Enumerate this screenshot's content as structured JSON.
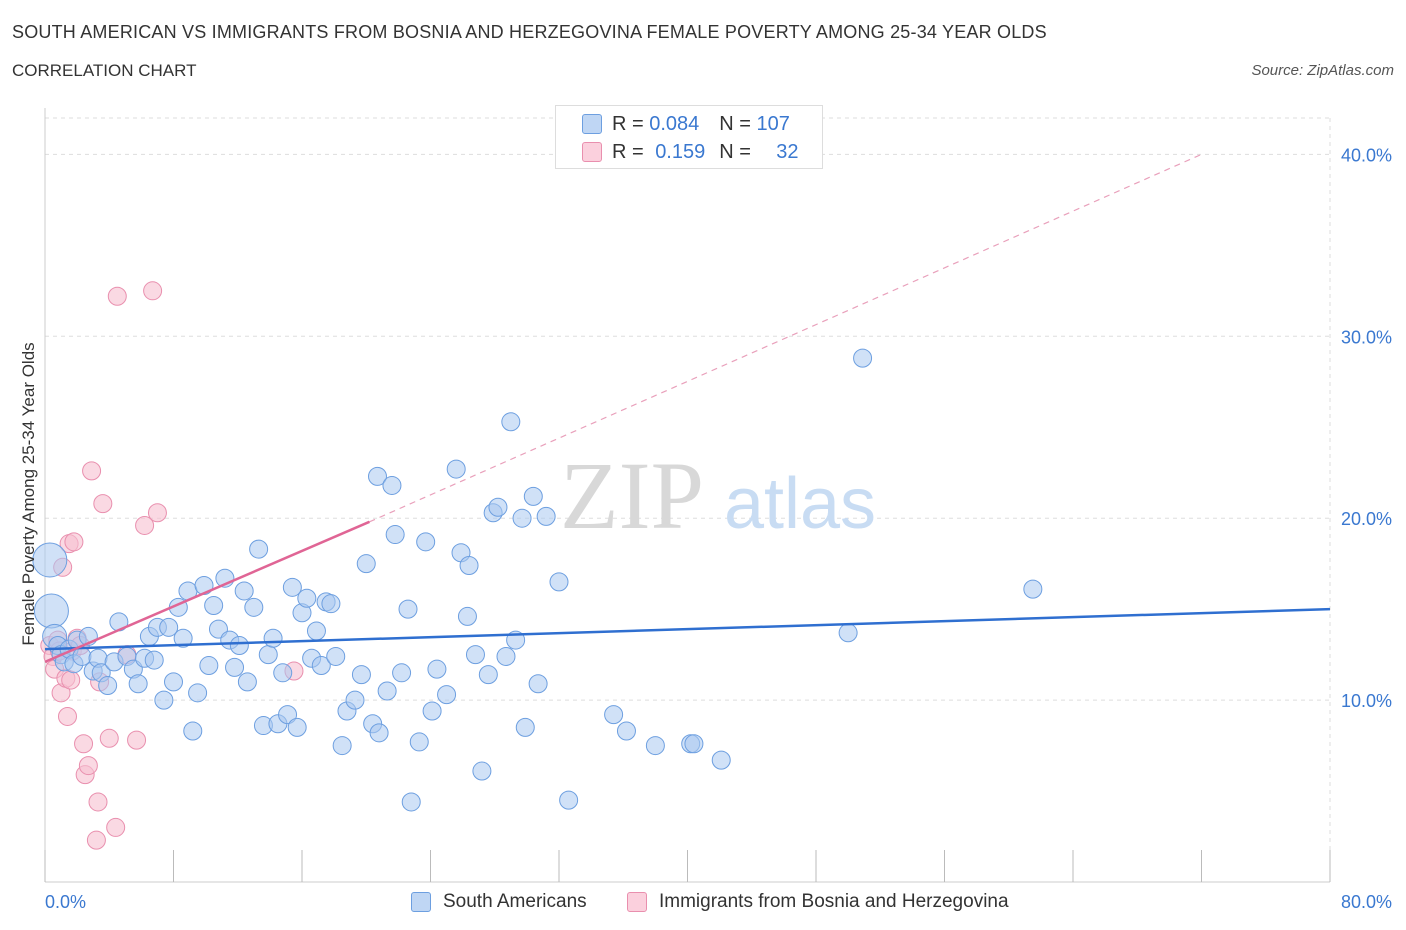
{
  "header": {
    "title": "SOUTH AMERICAN VS IMMIGRANTS FROM BOSNIA AND HERZEGOVINA FEMALE POVERTY AMONG 25-34 YEAR OLDS",
    "subtitle": "CORRELATION CHART",
    "source": "Source: ZipAtlas.com"
  },
  "watermark": {
    "zip": "ZIP",
    "atlas": "atlas"
  },
  "colors": {
    "blue_fill": "#a9c8f0",
    "blue_stroke": "#6d9fe0",
    "blue_line": "#2f6fd0",
    "pink_fill": "#f6bfd0",
    "pink_stroke": "#e98fae",
    "pink_line": "#e06595",
    "tick_label": "#3a78d0",
    "grid": "#dddddd"
  },
  "legend": {
    "r_label": "R =",
    "n_label": "N =",
    "blue": {
      "r": "0.084",
      "n": "107"
    },
    "pink": {
      "r": "0.159",
      "n": "32"
    }
  },
  "chart_data": {
    "type": "scatter",
    "title": "SOUTH AMERICAN VS IMMIGRANTS FROM BOSNIA AND HERZEGOVINA FEMALE POVERTY AMONG 25-34 YEAR OLDS",
    "xlabel": "",
    "ylabel": "Female Poverty Among 25-34 Year Olds",
    "xlim": [
      0,
      80
    ],
    "ylim": [
      0,
      42
    ],
    "x_tick_labels": [
      "0.0%",
      "80.0%"
    ],
    "y_ticks": [
      10,
      20,
      30,
      40
    ],
    "y_tick_labels": [
      "10.0%",
      "20.0%",
      "30.0%",
      "40.0%"
    ],
    "grid": true,
    "legend_position": "top-center",
    "series": [
      {
        "name": "South Americans",
        "R": 0.084,
        "N": 107,
        "trend": {
          "x": [
            0,
            80
          ],
          "y": [
            12.8,
            15.0
          ],
          "style": "solid"
        },
        "points": [
          [
            0.3,
            17.7,
            3
          ],
          [
            0.4,
            14.9,
            3
          ],
          [
            0.6,
            13.5,
            2
          ],
          [
            0.8,
            13.0,
            1
          ],
          [
            1.0,
            12.5,
            1
          ],
          [
            1.2,
            12.1,
            1
          ],
          [
            1.5,
            12.8,
            1
          ],
          [
            1.8,
            12.0,
            1
          ],
          [
            2.0,
            13.3,
            1
          ],
          [
            2.3,
            12.4,
            1
          ],
          [
            2.7,
            13.5,
            1
          ],
          [
            3.0,
            11.6,
            1
          ],
          [
            3.3,
            12.3,
            1
          ],
          [
            3.5,
            11.5,
            1
          ],
          [
            3.9,
            10.8,
            1
          ],
          [
            4.3,
            12.1,
            1
          ],
          [
            4.6,
            14.3,
            1
          ],
          [
            5.1,
            12.4,
            1
          ],
          [
            5.5,
            11.7,
            1
          ],
          [
            5.8,
            10.9,
            1
          ],
          [
            6.2,
            12.3,
            1
          ],
          [
            6.5,
            13.5,
            1
          ],
          [
            6.8,
            12.2,
            1
          ],
          [
            7.0,
            14.0,
            1
          ],
          [
            7.4,
            10.0,
            1
          ],
          [
            7.7,
            14.0,
            1
          ],
          [
            8.0,
            11.0,
            1
          ],
          [
            8.3,
            15.1,
            1
          ],
          [
            8.6,
            13.4,
            1
          ],
          [
            8.9,
            16.0,
            1
          ],
          [
            9.2,
            8.3,
            1
          ],
          [
            9.5,
            10.4,
            1
          ],
          [
            9.9,
            16.3,
            1
          ],
          [
            10.2,
            11.9,
            1
          ],
          [
            10.5,
            15.2,
            1
          ],
          [
            10.8,
            13.9,
            1
          ],
          [
            11.2,
            16.7,
            1
          ],
          [
            11.5,
            13.3,
            1
          ],
          [
            11.8,
            11.8,
            1
          ],
          [
            12.1,
            13.0,
            1
          ],
          [
            12.4,
            16.0,
            1
          ],
          [
            12.6,
            11.0,
            1
          ],
          [
            13.0,
            15.1,
            1
          ],
          [
            13.3,
            18.3,
            1
          ],
          [
            13.6,
            8.6,
            1
          ],
          [
            13.9,
            12.5,
            1
          ],
          [
            14.2,
            13.4,
            1
          ],
          [
            14.5,
            8.7,
            1
          ],
          [
            14.8,
            11.5,
            1
          ],
          [
            15.1,
            9.2,
            1
          ],
          [
            15.4,
            16.2,
            1
          ],
          [
            15.7,
            8.5,
            1
          ],
          [
            16.0,
            14.8,
            1
          ],
          [
            16.3,
            15.6,
            1
          ],
          [
            16.6,
            12.3,
            1
          ],
          [
            16.9,
            13.8,
            1
          ],
          [
            17.2,
            11.9,
            1
          ],
          [
            17.5,
            15.4,
            1
          ],
          [
            17.8,
            15.3,
            1
          ],
          [
            18.1,
            12.4,
            1
          ],
          [
            18.5,
            7.5,
            1
          ],
          [
            18.8,
            9.4,
            1
          ],
          [
            19.3,
            10.0,
            1
          ],
          [
            19.7,
            11.4,
            1
          ],
          [
            20.0,
            17.5,
            1
          ],
          [
            20.4,
            8.7,
            1
          ],
          [
            20.7,
            22.3,
            1
          ],
          [
            20.8,
            8.2,
            1
          ],
          [
            21.6,
            21.8,
            1
          ],
          [
            21.3,
            10.5,
            1
          ],
          [
            21.8,
            19.1,
            1
          ],
          [
            22.2,
            11.5,
            1
          ],
          [
            22.6,
            15.0,
            1
          ],
          [
            22.8,
            4.4,
            1
          ],
          [
            23.3,
            7.7,
            1
          ],
          [
            23.7,
            18.7,
            1
          ],
          [
            24.1,
            9.4,
            1
          ],
          [
            24.4,
            11.7,
            1
          ],
          [
            25.0,
            10.3,
            1
          ],
          [
            25.6,
            22.7,
            1
          ],
          [
            25.9,
            18.1,
            1
          ],
          [
            26.4,
            17.4,
            1
          ],
          [
            26.3,
            14.6,
            1
          ],
          [
            26.8,
            12.5,
            1
          ],
          [
            27.2,
            6.1,
            1
          ],
          [
            27.6,
            11.4,
            1
          ],
          [
            27.9,
            20.3,
            1
          ],
          [
            28.2,
            20.6,
            1
          ],
          [
            28.7,
            12.4,
            1
          ],
          [
            29.0,
            25.3,
            1
          ],
          [
            29.3,
            13.3,
            1
          ],
          [
            29.7,
            20.0,
            1
          ],
          [
            29.9,
            8.5,
            1
          ],
          [
            30.4,
            21.2,
            1
          ],
          [
            30.7,
            10.9,
            1
          ],
          [
            31.2,
            20.1,
            1
          ],
          [
            32.0,
            16.5,
            1
          ],
          [
            32.6,
            4.5,
            1
          ],
          [
            35.4,
            9.2,
            1
          ],
          [
            36.2,
            8.3,
            1
          ],
          [
            38.0,
            7.5,
            1
          ],
          [
            40.2,
            7.6,
            1
          ],
          [
            40.4,
            7.6,
            1
          ],
          [
            42.1,
            6.7,
            1
          ],
          [
            50.0,
            13.7,
            1
          ],
          [
            50.9,
            28.8,
            1
          ],
          [
            61.5,
            16.1,
            1
          ]
        ]
      },
      {
        "name": "Immigrants from Bosnia and Herzegovina",
        "R": 0.159,
        "N": 32,
        "trend": {
          "x": [
            0,
            20.2
          ],
          "y": [
            12.1,
            19.8
          ],
          "style": "solid",
          "extension": {
            "x": [
              20.2,
              72.0
            ],
            "y": [
              19.8,
              40.0
            ],
            "style": "dashed"
          }
        },
        "points": [
          [
            0.3,
            13.0,
            1
          ],
          [
            0.5,
            12.4,
            1
          ],
          [
            0.6,
            11.7,
            1
          ],
          [
            0.8,
            13.3,
            1
          ],
          [
            0.9,
            12.7,
            1
          ],
          [
            1.0,
            10.4,
            1
          ],
          [
            1.1,
            17.3,
            1
          ],
          [
            1.3,
            11.2,
            1
          ],
          [
            1.4,
            9.1,
            1
          ],
          [
            1.5,
            18.6,
            1
          ],
          [
            1.6,
            11.1,
            1
          ],
          [
            1.7,
            12.7,
            1
          ],
          [
            1.8,
            18.7,
            1
          ],
          [
            2.0,
            13.4,
            1
          ],
          [
            2.2,
            13.0,
            1
          ],
          [
            2.4,
            7.6,
            1
          ],
          [
            2.5,
            5.9,
            1
          ],
          [
            2.7,
            6.4,
            1
          ],
          [
            2.9,
            22.6,
            1
          ],
          [
            3.2,
            2.3,
            1
          ],
          [
            3.3,
            4.4,
            1
          ],
          [
            3.4,
            11.0,
            1
          ],
          [
            3.6,
            20.8,
            1
          ],
          [
            4.0,
            7.9,
            1
          ],
          [
            4.4,
            3.0,
            1
          ],
          [
            4.5,
            32.2,
            1
          ],
          [
            5.1,
            12.5,
            1
          ],
          [
            5.7,
            7.8,
            1
          ],
          [
            6.2,
            19.6,
            1
          ],
          [
            6.7,
            32.5,
            1
          ],
          [
            7.0,
            20.3,
            1
          ],
          [
            15.5,
            11.6,
            1
          ]
        ]
      }
    ]
  }
}
